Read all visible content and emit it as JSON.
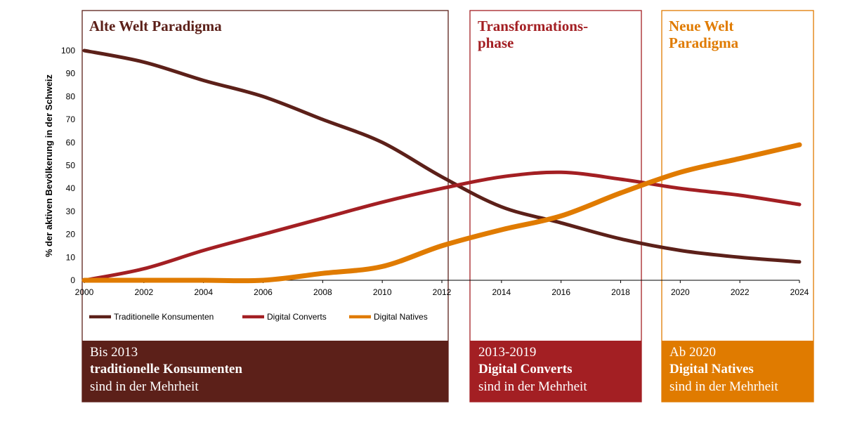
{
  "colors": {
    "traditional": "#5c2019",
    "converts": "#a31f23",
    "natives": "#e07b00"
  },
  "phases": [
    {
      "title_lines": [
        "Alte Welt Paradigma"
      ],
      "color": "#5c2019"
    },
    {
      "title_lines": [
        "Transformations-",
        "phase"
      ],
      "color": "#a31f23"
    },
    {
      "title_lines": [
        "Neue Welt",
        "Paradigma"
      ],
      "color": "#e07b00"
    }
  ],
  "summary_boxes": [
    {
      "line1": "Bis 2013",
      "line2": "traditionelle Konsumenten",
      "line3": "sind in der Mehrheit",
      "color": "#5c2019"
    },
    {
      "line1": "2013-2019",
      "line2": "Digital Converts",
      "line3": "sind in der Mehrheit",
      "color": "#a31f23"
    },
    {
      "line1": "Ab 2020",
      "line2": "Digital Natives",
      "line3": "sind in der Mehrheit",
      "color": "#e07b00"
    }
  ],
  "chart_data": {
    "type": "line",
    "xlabel": "",
    "ylabel": "% der aktiven Bevölkerung in der Schweiz",
    "xlim": [
      2000,
      2024
    ],
    "ylim": [
      0,
      100
    ],
    "x_ticks": [
      2000,
      2002,
      2004,
      2006,
      2008,
      2010,
      2012,
      2014,
      2016,
      2018,
      2020,
      2022,
      2024
    ],
    "y_ticks": [
      0,
      10,
      20,
      30,
      40,
      50,
      60,
      70,
      80,
      90,
      100
    ],
    "grid": false,
    "legend_position": "bottom-left",
    "x": [
      2000,
      2002,
      2004,
      2006,
      2008,
      2010,
      2012,
      2014,
      2016,
      2018,
      2020,
      2022,
      2024
    ],
    "series": [
      {
        "name": "Traditionelle Konsumenten",
        "color": "#5c2019",
        "values": [
          100,
          95,
          87,
          80,
          70,
          60,
          45,
          32,
          25,
          18,
          13,
          10,
          8
        ]
      },
      {
        "name": "Digital Converts",
        "color": "#a31f23",
        "values": [
          0,
          5,
          13,
          20,
          27,
          34,
          40,
          45,
          47,
          44,
          40,
          37,
          33
        ]
      },
      {
        "name": "Digital Natives",
        "color": "#e07b00",
        "values": [
          0,
          0,
          0,
          0,
          3,
          6,
          15,
          22,
          28,
          38,
          47,
          53,
          59
        ]
      }
    ]
  }
}
